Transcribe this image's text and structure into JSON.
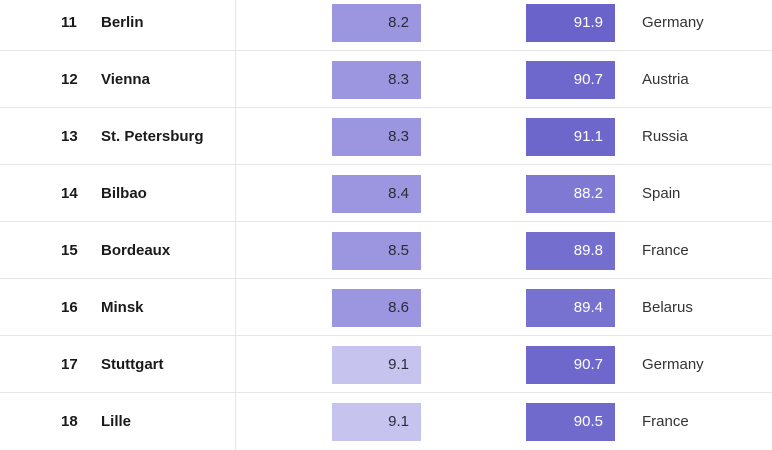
{
  "rows": [
    {
      "rank": "11",
      "city": "Berlin",
      "score": "8.2",
      "score_color": "#9b96df",
      "pct": "91.9",
      "pct_color": "#6a63c9",
      "country": "Germany"
    },
    {
      "rank": "12",
      "city": "Vienna",
      "score": "8.3",
      "score_color": "#9b96df",
      "pct": "90.7",
      "pct_color": "#6f68cc",
      "country": "Austria"
    },
    {
      "rank": "13",
      "city": "St. Petersburg",
      "score": "8.3",
      "score_color": "#9b96df",
      "pct": "91.1",
      "pct_color": "#6d66cb",
      "country": "Russia"
    },
    {
      "rank": "14",
      "city": "Bilbao",
      "score": "8.4",
      "score_color": "#9b96df",
      "pct": "88.2",
      "pct_color": "#7f79d3",
      "country": "Spain"
    },
    {
      "rank": "15",
      "city": "Bordeaux",
      "score": "8.5",
      "score_color": "#9b96df",
      "pct": "89.8",
      "pct_color": "#746ece",
      "country": "France"
    },
    {
      "rank": "16",
      "city": "Minsk",
      "score": "8.6",
      "score_color": "#9b96df",
      "pct": "89.4",
      "pct_color": "#7771d0",
      "country": "Belarus"
    },
    {
      "rank": "17",
      "city": "Stuttgart",
      "score": "9.1",
      "score_color": "#c6c3ee",
      "pct": "90.7",
      "pct_color": "#6f68cc",
      "country": "Germany"
    },
    {
      "rank": "18",
      "city": "Lille",
      "score": "9.1",
      "score_color": "#c6c3ee",
      "pct": "90.5",
      "pct_color": "#706acd",
      "country": "France"
    }
  ]
}
